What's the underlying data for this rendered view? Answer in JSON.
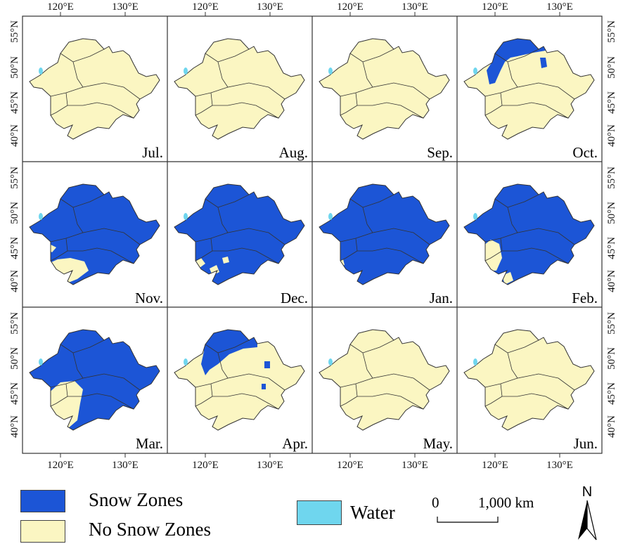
{
  "axes": {
    "lon_labels": [
      "120°E",
      "130°E"
    ],
    "lat_labels": [
      "55°N",
      "50°N",
      "45°N",
      "40°N"
    ]
  },
  "months": [
    "Jul.",
    "Aug.",
    "Sep.",
    "Oct.",
    "Nov.",
    "Dec.",
    "Jan.",
    "Feb.",
    "Mar.",
    "Apr.",
    "May.",
    "Jun."
  ],
  "legend": {
    "snow_label": "Snow Zones",
    "no_snow_label": "No Snow Zones",
    "water_label": "Water"
  },
  "scalebar": {
    "start": "0",
    "end": "1,000 km"
  },
  "north_arrow": {
    "label": "N"
  },
  "colors": {
    "snow": "#1c55d6",
    "no_snow": "#fbf6c2",
    "water": "#6fd6ee",
    "border": "#333333"
  }
}
